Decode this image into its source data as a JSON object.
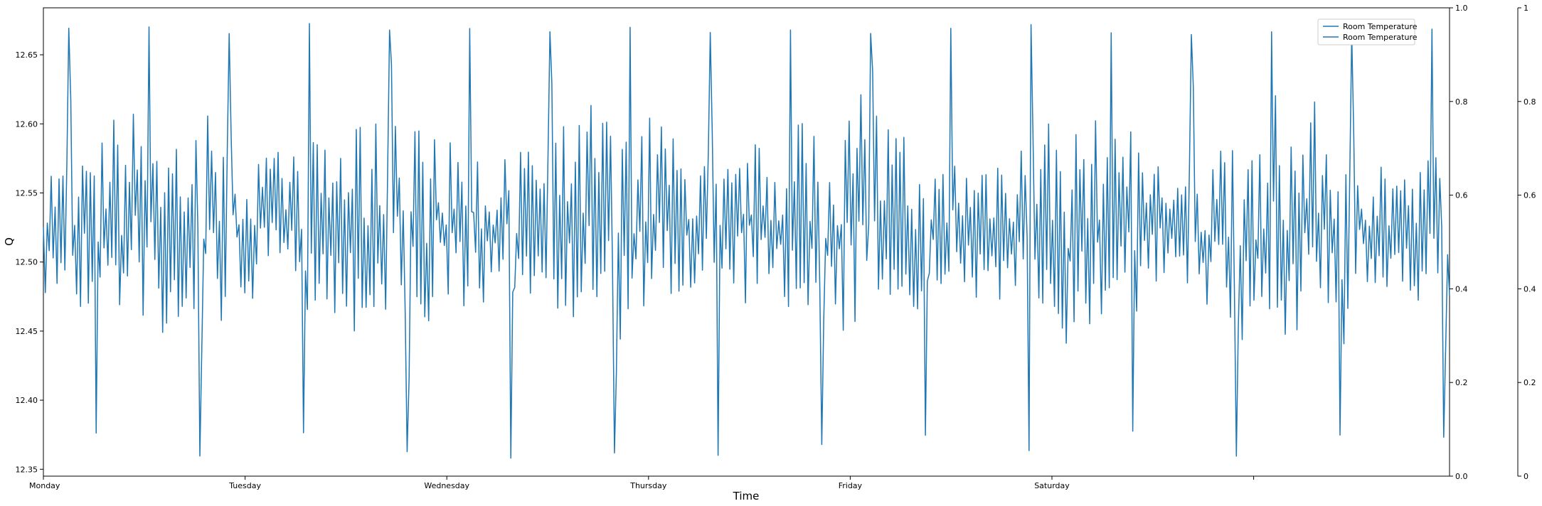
{
  "chart_data": {
    "type": "line",
    "title": "",
    "xlabel": "Time",
    "ylabel": "Q",
    "x_tick_labels": [
      "Monday",
      "Tuesday",
      "Wednesday",
      "Thursday",
      "Friday",
      "Saturday",
      ""
    ],
    "x_range_points": 720,
    "ylim": [
      12.345,
      12.684
    ],
    "y_ticks": [
      "12.35",
      "12.40",
      "12.45",
      "12.50",
      "12.55",
      "12.60",
      "12.65"
    ],
    "twin_axis_1": {
      "ylim": [
        0,
        1
      ],
      "ticks": [
        "0.0",
        "0.2",
        "0.4",
        "0.6",
        "0.8",
        "1.0"
      ]
    },
    "twin_axis_2": {
      "ylim": [
        0,
        1
      ],
      "ticks": [
        "0",
        "0.2",
        "0.4",
        "0.6",
        "0.8",
        "1"
      ]
    },
    "legend": {
      "placement": "top-right",
      "entries": [
        "Room Temperature",
        "Room Temperature"
      ]
    },
    "grid": false,
    "series": [
      {
        "name": "Room Temperature",
        "color": "#1f77b4",
        "mean": 12.52,
        "amplitude": 0.08,
        "min": 12.358,
        "max": 12.673
      }
    ]
  }
}
